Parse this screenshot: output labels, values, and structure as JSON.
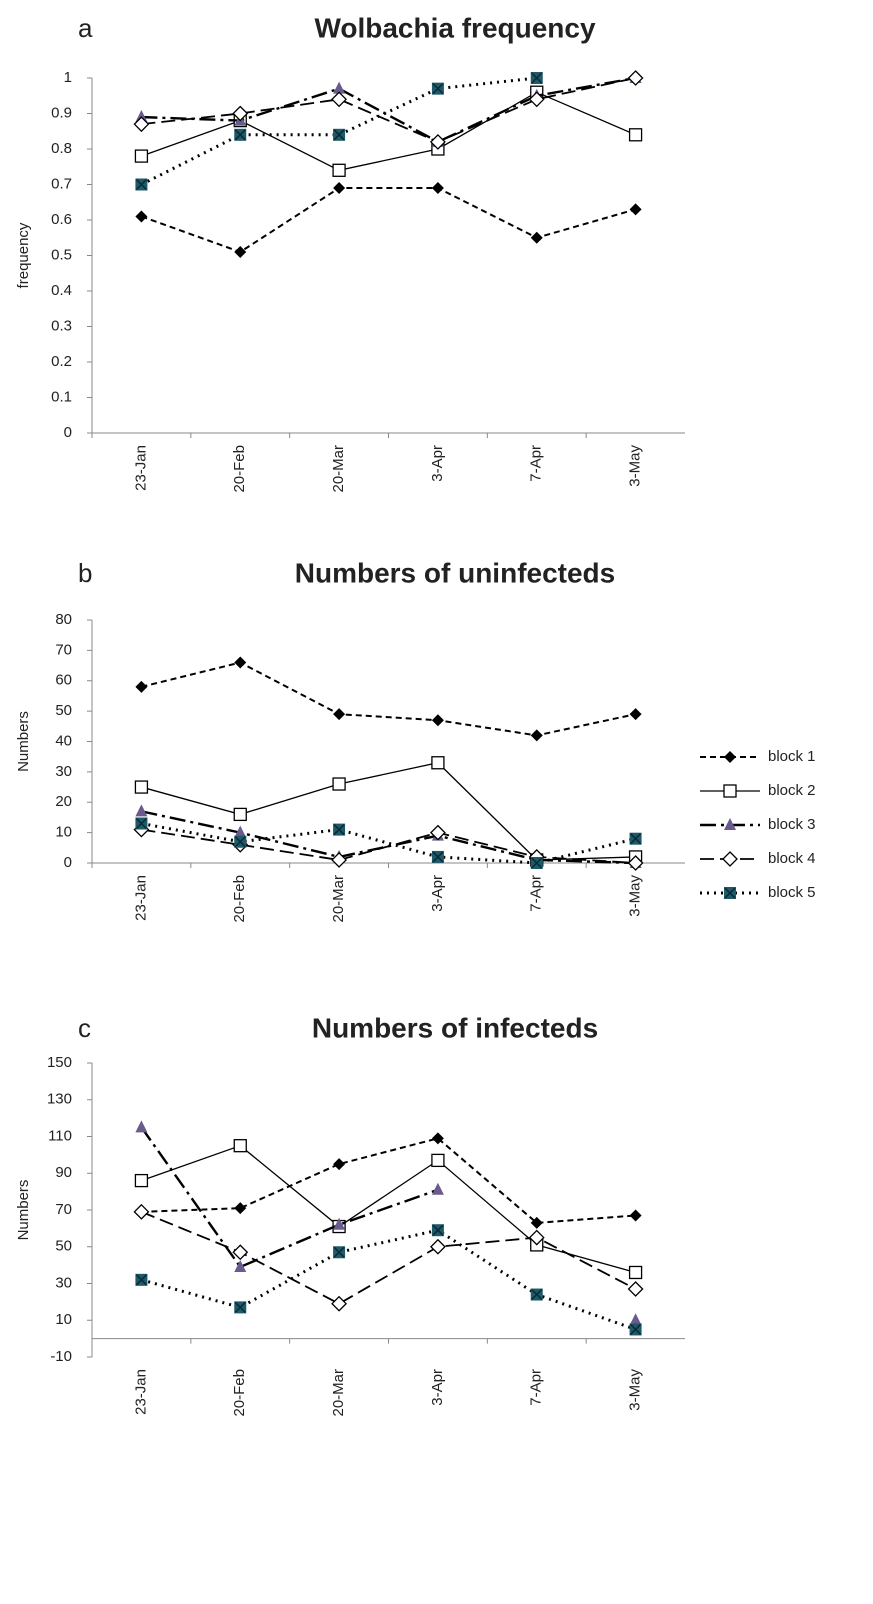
{
  "chart_data": [
    {
      "type": "line",
      "panel_label": "a",
      "title": "Wolbachia frequency",
      "y_label": "frequency",
      "categories": [
        "23-Jan",
        "20-Feb",
        "20-Mar",
        "3-Apr",
        "7-Apr",
        "3-May"
      ],
      "ylim": [
        0,
        1
      ],
      "yticks": [
        0,
        0.1,
        0.2,
        0.3,
        0.4,
        0.5,
        0.6,
        0.7,
        0.8,
        0.9,
        1
      ],
      "series": [
        {
          "name": "block 1",
          "color": "#000000",
          "values": [
            0.61,
            0.51,
            0.69,
            0.69,
            0.55,
            0.63
          ]
        },
        {
          "name": "block 2",
          "color": "#000000",
          "values": [
            0.78,
            0.88,
            0.74,
            0.8,
            0.96,
            0.84
          ]
        },
        {
          "name": "block 3",
          "color": "#6a5a8e",
          "values": [
            0.89,
            0.88,
            0.97,
            0.82,
            0.95,
            1
          ]
        },
        {
          "name": "block 4",
          "color": "#000000",
          "values": [
            0.87,
            0.9,
            0.94,
            0.82,
            0.94,
            1
          ]
        },
        {
          "name": "block 5",
          "color": "#1e5a6a",
          "values": [
            0.7,
            0.84,
            0.84,
            0.97,
            1,
            null
          ]
        }
      ]
    },
    {
      "type": "line",
      "panel_label": "b",
      "title": "Numbers of uninfecteds",
      "y_label": "Numbers",
      "legend": "right",
      "categories": [
        "23-Jan",
        "20-Feb",
        "20-Mar",
        "3-Apr",
        "7-Apr",
        "3-May"
      ],
      "ylim": [
        0,
        80
      ],
      "yticks": [
        0,
        10,
        20,
        30,
        40,
        50,
        60,
        70,
        80
      ],
      "series": [
        {
          "name": "block 1",
          "color": "#000000",
          "values": [
            58,
            66,
            49,
            47,
            42,
            49
          ]
        },
        {
          "name": "block 2",
          "color": "#000000",
          "values": [
            25,
            16,
            26,
            33,
            1,
            2
          ]
        },
        {
          "name": "block 3",
          "color": "#6a5a8e",
          "values": [
            17,
            10,
            2,
            9,
            1,
            0
          ]
        },
        {
          "name": "block 4",
          "color": "#000000",
          "values": [
            11,
            6,
            1,
            10,
            2,
            0
          ]
        },
        {
          "name": "block 5",
          "color": "#1e5a6a",
          "values": [
            13,
            7,
            11,
            2,
            0,
            8
          ]
        }
      ]
    },
    {
      "type": "line",
      "panel_label": "c",
      "title": "Numbers of infecteds",
      "y_label": "Numbers",
      "categories": [
        "23-Jan",
        "20-Feb",
        "20-Mar",
        "3-Apr",
        "7-Apr",
        "3-May"
      ],
      "ylim": [
        -10,
        150
      ],
      "yticks": [
        -10,
        10,
        30,
        50,
        70,
        90,
        110,
        130,
        150
      ],
      "series": [
        {
          "name": "block 1",
          "color": "#000000",
          "values": [
            69,
            71,
            95,
            109,
            63,
            67
          ]
        },
        {
          "name": "block 2",
          "color": "#000000",
          "values": [
            86,
            105,
            61,
            97,
            51,
            36
          ]
        },
        {
          "name": "block 3",
          "color": "#6a5a8e",
          "values": [
            115,
            39,
            62,
            81,
            null,
            10
          ]
        },
        {
          "name": "block 4",
          "color": "#000000",
          "values": [
            69,
            47,
            19,
            50,
            55,
            27
          ]
        },
        {
          "name": "block 5",
          "color": "#1e5a6a",
          "values": [
            32,
            17,
            47,
            59,
            24,
            5
          ]
        }
      ]
    }
  ]
}
